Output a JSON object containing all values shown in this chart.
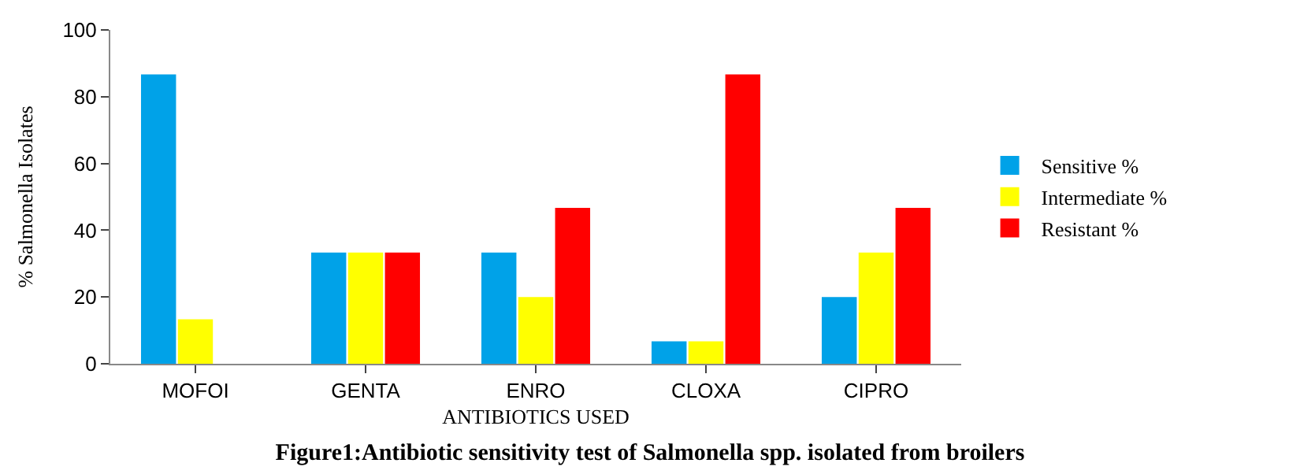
{
  "chart_data": {
    "type": "bar",
    "title": "Figure1:Antibiotic sensitivity test of Salmonella spp. isolated from broilers",
    "xlabel": "ANTIBIOTICS USED",
    "ylabel": "% Salmonella Isolates",
    "categories": [
      "MOFOI",
      "GENTA",
      "ENRO",
      "CLOXA",
      "CIPRO"
    ],
    "series": [
      {
        "name": "Sensitive %",
        "color": "#00a2e8",
        "values": [
          86.7,
          33.3,
          33.3,
          6.7,
          20
        ]
      },
      {
        "name": "Intermediate %",
        "color": "#ffff00",
        "values": [
          13.3,
          33.3,
          20,
          6.7,
          33.3
        ]
      },
      {
        "name": "Resistant %",
        "color": "#ff0000",
        "values": [
          0,
          33.3,
          46.7,
          86.7,
          46.7
        ]
      }
    ],
    "ylim": [
      0,
      100
    ],
    "yticks": [
      0,
      20,
      40,
      60,
      80,
      100
    ],
    "legend": "right"
  }
}
